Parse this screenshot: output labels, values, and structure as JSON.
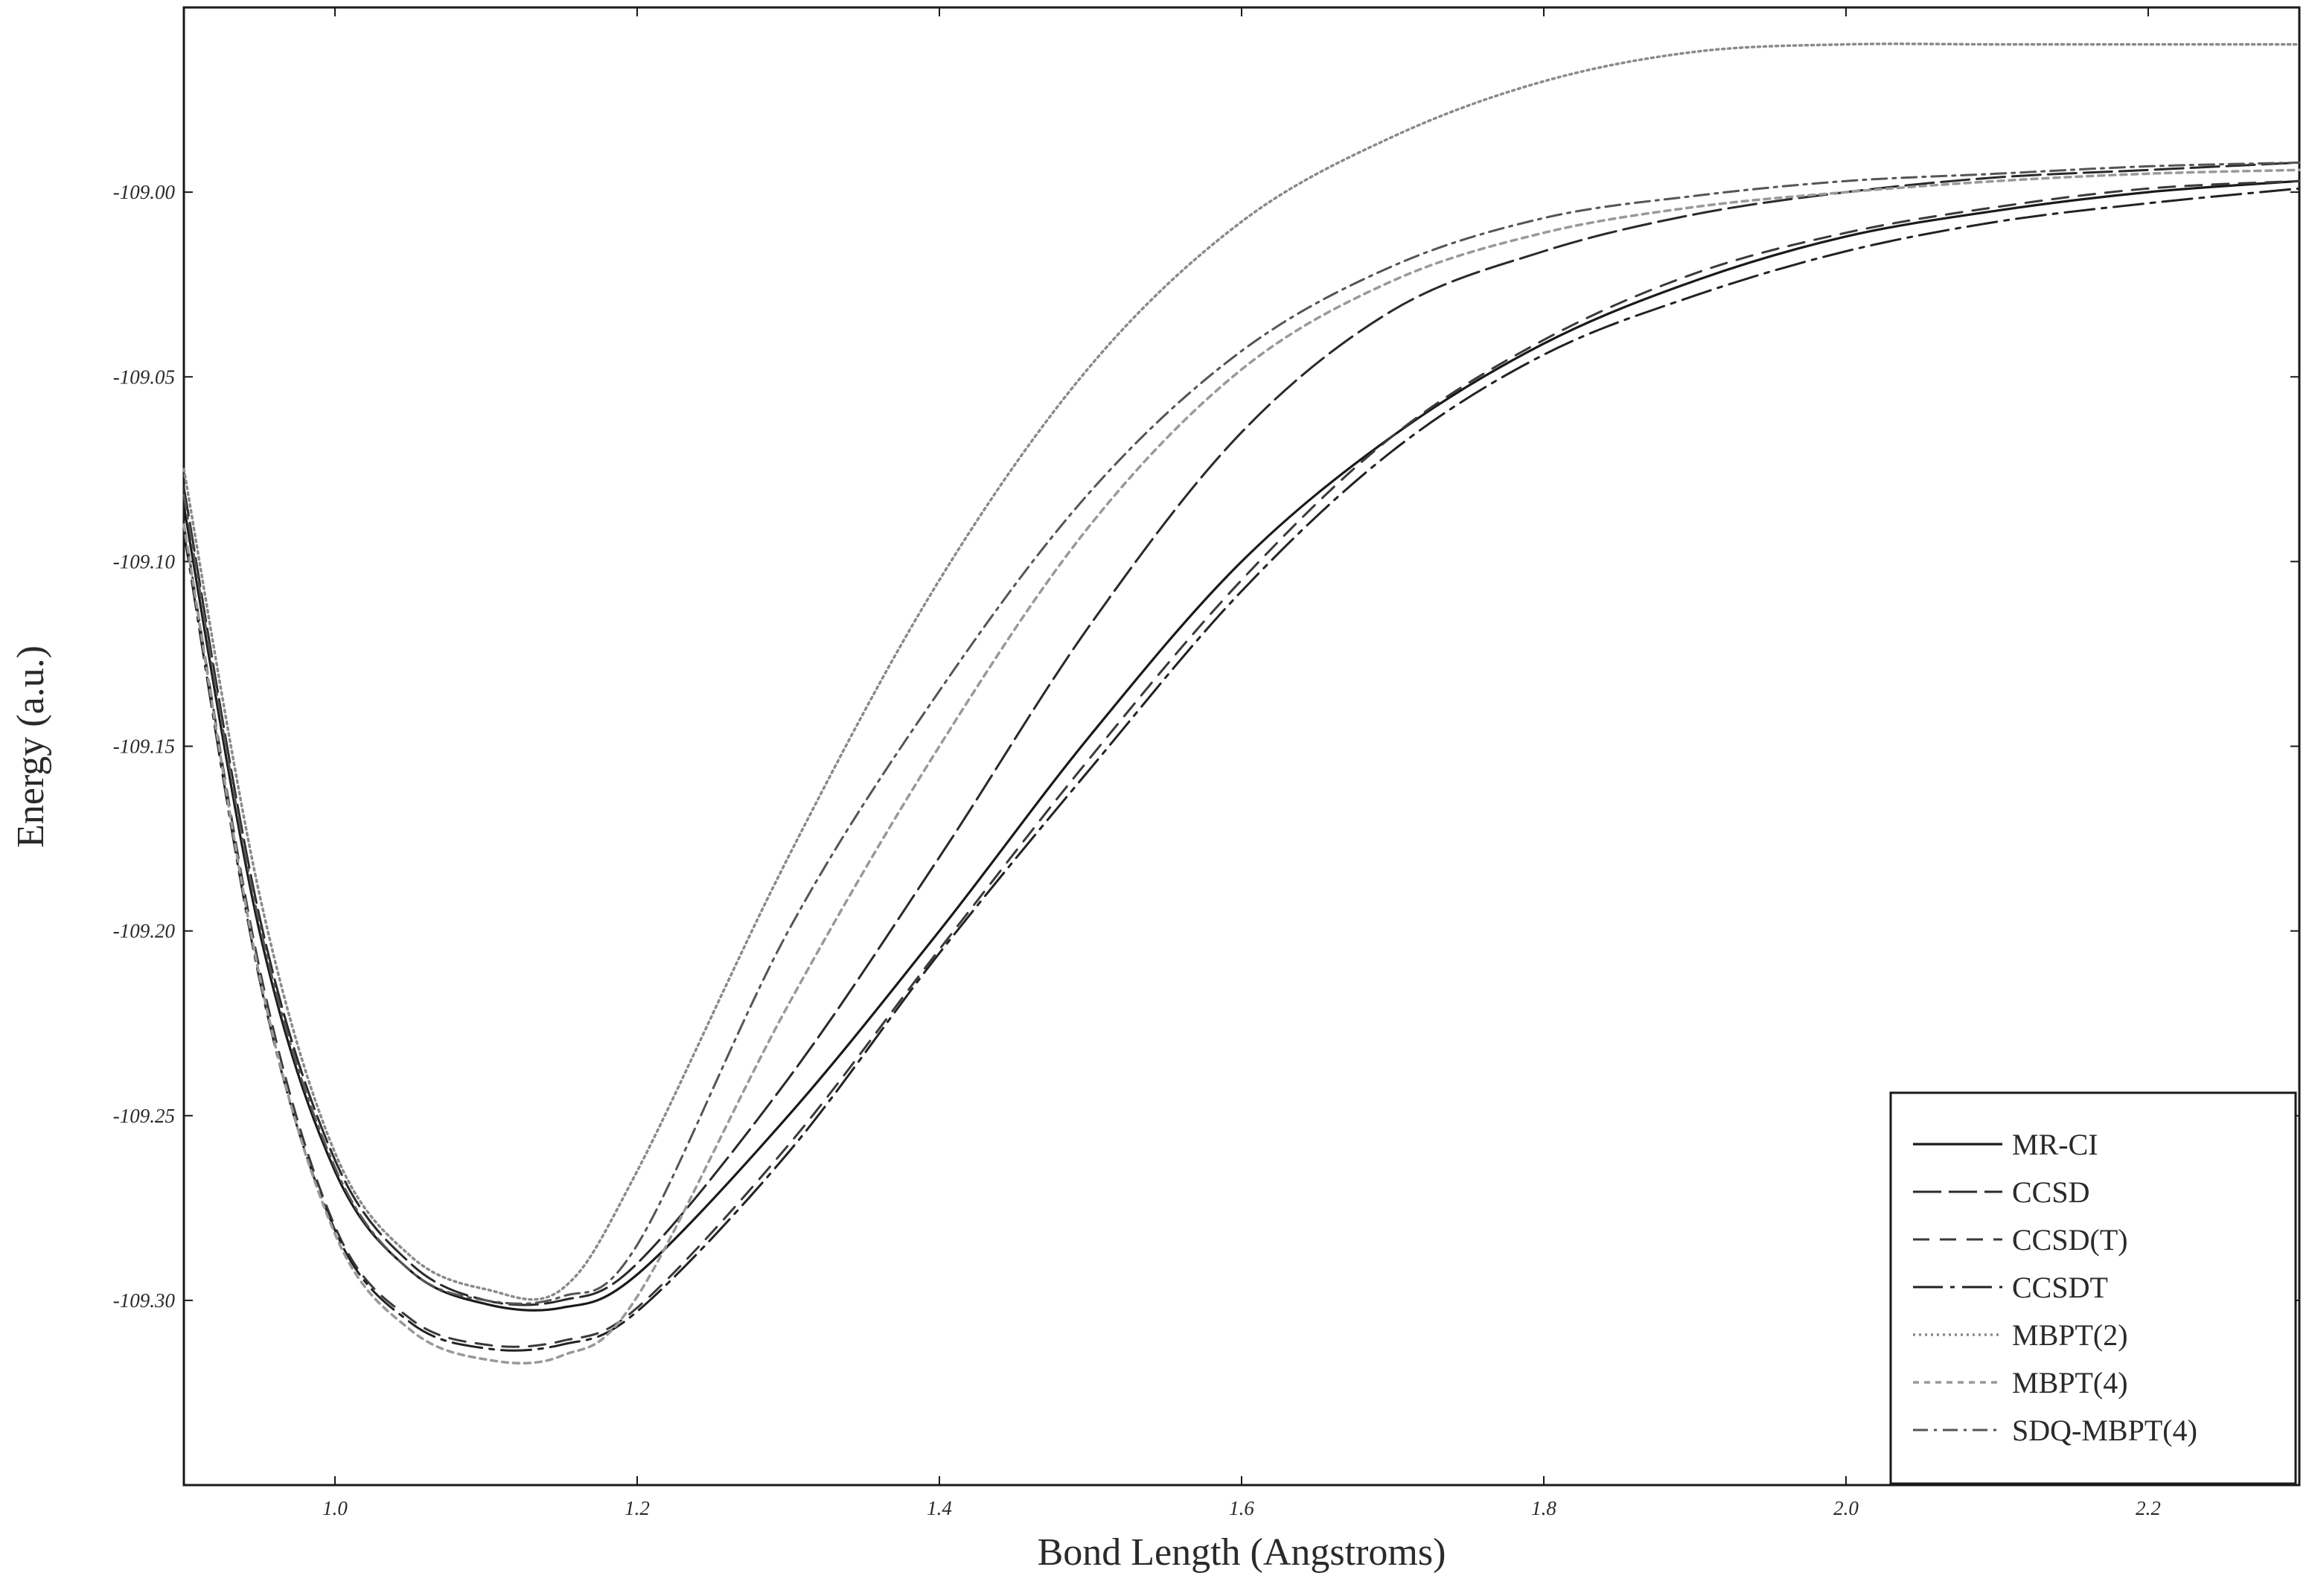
{
  "chart_data": {
    "type": "line",
    "title": "",
    "xlabel": "Bond Length (Angstroms)",
    "ylabel": "Energy (a.u.)",
    "xlim": [
      0.9,
      2.3
    ],
    "ylim": [
      -109.35,
      -108.95
    ],
    "x_ticks": [
      "1.0",
      "1.2",
      "1.4",
      "1.6",
      "1.8",
      "2.0",
      "2.2"
    ],
    "y_ticks": [
      "-109.00",
      "-109.05",
      "-109.10",
      "-109.15",
      "-109.20",
      "-109.25",
      "-109.30"
    ],
    "grid": false,
    "legend_position": "bottom-right",
    "x": [
      0.9,
      0.95,
      1.0,
      1.05,
      1.1,
      1.15,
      1.2,
      1.3,
      1.4,
      1.5,
      1.6,
      1.7,
      1.8,
      1.9,
      2.0,
      2.1,
      2.2,
      2.3
    ],
    "series": [
      {
        "name": "MR-CI",
        "style": "solid",
        "values": [
          -109.085,
          -109.2,
          -109.265,
          -109.292,
          -109.301,
          -109.302,
          -109.293,
          -109.25,
          -109.2,
          -109.147,
          -109.1,
          -109.066,
          -109.041,
          -109.024,
          -109.012,
          -109.005,
          -109.0,
          -108.997
        ]
      },
      {
        "name": "CCSD",
        "style": "longdash",
        "values": [
          -109.08,
          -109.196,
          -109.262,
          -109.29,
          -109.3,
          -109.3,
          -109.29,
          -109.24,
          -109.18,
          -109.117,
          -109.065,
          -109.032,
          -109.016,
          -109.006,
          -109.0,
          -108.996,
          -108.994,
          -108.992
        ]
      },
      {
        "name": "CCSD(T)",
        "style": "dash",
        "values": [
          -109.09,
          -109.21,
          -109.28,
          -109.305,
          -109.312,
          -109.311,
          -109.302,
          -109.258,
          -109.205,
          -109.153,
          -109.105,
          -109.066,
          -109.04,
          -109.022,
          -109.011,
          -109.004,
          -108.999,
          -108.997
        ]
      },
      {
        "name": "CCSDT",
        "style": "dashdot-long",
        "values": [
          -109.092,
          -109.213,
          -109.281,
          -109.306,
          -109.313,
          -109.312,
          -109.303,
          -109.26,
          -109.206,
          -109.156,
          -109.108,
          -109.07,
          -109.044,
          -109.028,
          -109.016,
          -109.008,
          -109.003,
          -108.999
        ]
      },
      {
        "name": "MBPT(2)",
        "style": "dot",
        "values": [
          -109.075,
          -109.19,
          -109.26,
          -109.288,
          -109.297,
          -109.297,
          -109.265,
          -109.18,
          -109.105,
          -109.047,
          -109.008,
          -108.985,
          -108.97,
          -108.962,
          -108.96,
          -108.96,
          -108.96,
          -108.96
        ]
      },
      {
        "name": "MBPT(4)",
        "style": "shortdash",
        "values": [
          -109.09,
          -109.212,
          -109.282,
          -109.308,
          -109.316,
          -109.315,
          -109.299,
          -109.22,
          -109.15,
          -109.09,
          -109.048,
          -109.024,
          -109.011,
          -109.004,
          -109.0,
          -108.997,
          -108.995,
          -108.994
        ]
      },
      {
        "name": "SDQ-MBPT(4)",
        "style": "dashdot",
        "values": [
          -109.082,
          -109.198,
          -109.264,
          -109.292,
          -109.3,
          -109.299,
          -109.285,
          -109.2,
          -109.135,
          -109.081,
          -109.043,
          -109.02,
          -109.007,
          -109.001,
          -108.997,
          -108.995,
          -108.993,
          -108.992
        ]
      }
    ],
    "colors": {
      "axis": "#1a1a1a",
      "MR-CI": "#1a1a1a",
      "CCSD": "#2a2a2a",
      "CCSD(T)": "#3a3a3a",
      "CCSDT": "#222222",
      "MBPT(2)": "#8a8a8a",
      "MBPT(4)": "#999999",
      "SDQ-MBPT(4)": "#555555"
    }
  }
}
